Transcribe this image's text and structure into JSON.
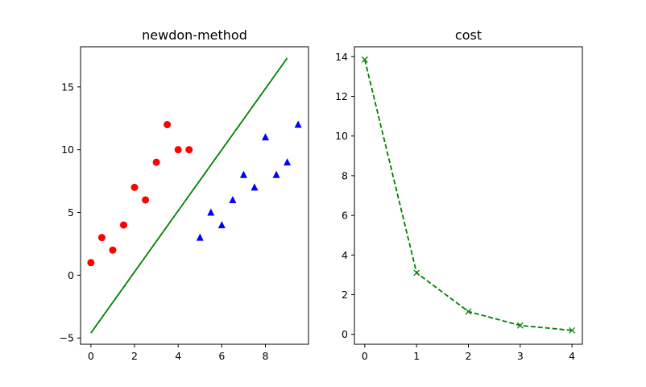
{
  "chart_data": [
    {
      "type": "scatter",
      "title": "newdon-method",
      "xlim": [
        -0.475,
        9.975
      ],
      "ylim": [
        -5.5,
        18.2
      ],
      "xticks": [
        0,
        2,
        4,
        6,
        8
      ],
      "yticks": [
        -5,
        0,
        5,
        10,
        15
      ],
      "grid": false,
      "series": [
        {
          "marker": "circle",
          "color": "#ff0000",
          "points": [
            [
              0,
              1
            ],
            [
              0.5,
              3
            ],
            [
              1,
              2
            ],
            [
              1.5,
              4
            ],
            [
              2,
              7
            ],
            [
              2.5,
              6
            ],
            [
              3,
              9
            ],
            [
              3.5,
              12
            ],
            [
              4,
              10
            ],
            [
              4.5,
              10
            ]
          ]
        },
        {
          "marker": "triangle",
          "color": "#0000ff",
          "points": [
            [
              5,
              3
            ],
            [
              5.5,
              5
            ],
            [
              6,
              4
            ],
            [
              6.5,
              6
            ],
            [
              7,
              8
            ],
            [
              7.5,
              7
            ],
            [
              8,
              11
            ],
            [
              8.5,
              8
            ],
            [
              9,
              9
            ],
            [
              9.5,
              12
            ]
          ]
        },
        {
          "marker": "line",
          "color": "#008000",
          "points": [
            [
              0,
              -4.6
            ],
            [
              9,
              17.3
            ]
          ]
        }
      ]
    },
    {
      "type": "line",
      "title": "cost",
      "xlim": [
        -0.2,
        4.2
      ],
      "ylim": [
        -0.5,
        14.5
      ],
      "xticks": [
        0,
        1,
        2,
        3,
        4
      ],
      "yticks": [
        0,
        2,
        4,
        6,
        8,
        10,
        12,
        14
      ],
      "grid": false,
      "series": [
        {
          "marker": "x",
          "linestyle": "dashed",
          "color": "#008000",
          "points": [
            [
              0,
              13.85
            ],
            [
              1,
              3.1
            ],
            [
              2,
              1.15
            ],
            [
              3,
              0.45
            ],
            [
              4,
              0.2
            ]
          ]
        }
      ]
    }
  ]
}
